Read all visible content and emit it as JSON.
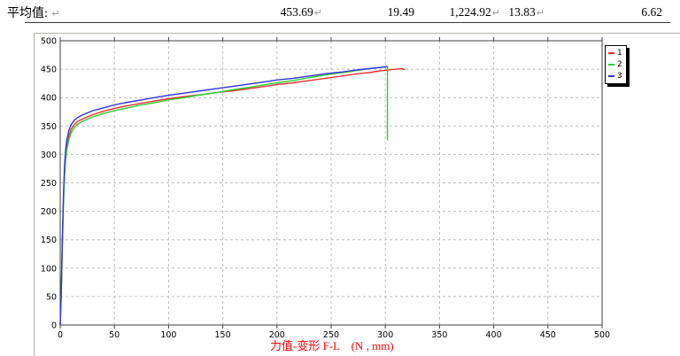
{
  "header": {
    "label": "平均值:",
    "return_mark": "↵",
    "values": [
      "453.69",
      "19.49",
      "1,224.92",
      "13.83",
      "6.62"
    ]
  },
  "chart_data": {
    "type": "line",
    "title": "",
    "xlabel": "力值-变形 F-L　(N , mm)",
    "ylabel": "",
    "xlim": [
      0,
      500
    ],
    "ylim": [
      0,
      500
    ],
    "xticks": [
      0,
      50,
      100,
      150,
      200,
      250,
      300,
      350,
      400,
      450,
      500
    ],
    "yticks": [
      0,
      50,
      100,
      150,
      200,
      250,
      300,
      350,
      400,
      450,
      500
    ],
    "grid": true,
    "grid_style": "dashed",
    "legend_position": "top-right",
    "colors": {
      "axis_border": "#404040",
      "gridline": "#bcbcbc",
      "xlabel_text": "#ff0000"
    },
    "series": [
      {
        "name": "1",
        "color": "#e63232",
        "points": [
          [
            0,
            0
          ],
          [
            1,
            57
          ],
          [
            2,
            145
          ],
          [
            3,
            222
          ],
          [
            4,
            270
          ],
          [
            5,
            298
          ],
          [
            6,
            314
          ],
          [
            8,
            332
          ],
          [
            10,
            344
          ],
          [
            13,
            352
          ],
          [
            16,
            358
          ],
          [
            20,
            362
          ],
          [
            25,
            366
          ],
          [
            30,
            370
          ],
          [
            40,
            376
          ],
          [
            50,
            381
          ],
          [
            60,
            385
          ],
          [
            75,
            390
          ],
          [
            90,
            395
          ],
          [
            100,
            398
          ],
          [
            115,
            402
          ],
          [
            130,
            405
          ],
          [
            145,
            409
          ],
          [
            160,
            412
          ],
          [
            175,
            416
          ],
          [
            190,
            420
          ],
          [
            200,
            423
          ],
          [
            215,
            426
          ],
          [
            230,
            430
          ],
          [
            245,
            434
          ],
          [
            260,
            438
          ],
          [
            275,
            442
          ],
          [
            285,
            444
          ],
          [
            295,
            447
          ],
          [
            300,
            448
          ],
          [
            305,
            449
          ],
          [
            310,
            450
          ],
          [
            315,
            451
          ],
          [
            318,
            449
          ]
        ]
      },
      {
        "name": "2",
        "color": "#2ecc2e",
        "points": [
          [
            0,
            0
          ],
          [
            1,
            55
          ],
          [
            2,
            140
          ],
          [
            3,
            215
          ],
          [
            4,
            262
          ],
          [
            5,
            290
          ],
          [
            6,
            307
          ],
          [
            8,
            326
          ],
          [
            10,
            338
          ],
          [
            13,
            347
          ],
          [
            16,
            353
          ],
          [
            20,
            358
          ],
          [
            25,
            362
          ],
          [
            30,
            366
          ],
          [
            40,
            372
          ],
          [
            50,
            377
          ],
          [
            60,
            381
          ],
          [
            75,
            387
          ],
          [
            90,
            392
          ],
          [
            100,
            396
          ],
          [
            115,
            400
          ],
          [
            130,
            405
          ],
          [
            145,
            409
          ],
          [
            160,
            414
          ],
          [
            175,
            418
          ],
          [
            190,
            423
          ],
          [
            200,
            426
          ],
          [
            215,
            430
          ],
          [
            230,
            435
          ],
          [
            245,
            440
          ],
          [
            260,
            444
          ],
          [
            275,
            448
          ],
          [
            285,
            451
          ],
          [
            295,
            453
          ],
          [
            300,
            454
          ],
          [
            302,
            454
          ],
          [
            302,
            325
          ]
        ]
      },
      {
        "name": "3",
        "color": "#3232dc",
        "points": [
          [
            0,
            0
          ],
          [
            1,
            60
          ],
          [
            2,
            150
          ],
          [
            3,
            230
          ],
          [
            4,
            280
          ],
          [
            5,
            308
          ],
          [
            6,
            324
          ],
          [
            8,
            342
          ],
          [
            10,
            352
          ],
          [
            13,
            360
          ],
          [
            16,
            365
          ],
          [
            20,
            369
          ],
          [
            25,
            373
          ],
          [
            30,
            377
          ],
          [
            40,
            382
          ],
          [
            50,
            387
          ],
          [
            60,
            391
          ],
          [
            75,
            396
          ],
          [
            90,
            401
          ],
          [
            100,
            404
          ],
          [
            115,
            408
          ],
          [
            130,
            412
          ],
          [
            145,
            416
          ],
          [
            160,
            420
          ],
          [
            175,
            424
          ],
          [
            190,
            428
          ],
          [
            200,
            431
          ],
          [
            215,
            434
          ],
          [
            230,
            438
          ],
          [
            245,
            442
          ],
          [
            260,
            445
          ],
          [
            275,
            449
          ],
          [
            285,
            451
          ],
          [
            295,
            453
          ],
          [
            300,
            454
          ],
          [
            302,
            455
          ]
        ]
      }
    ]
  }
}
